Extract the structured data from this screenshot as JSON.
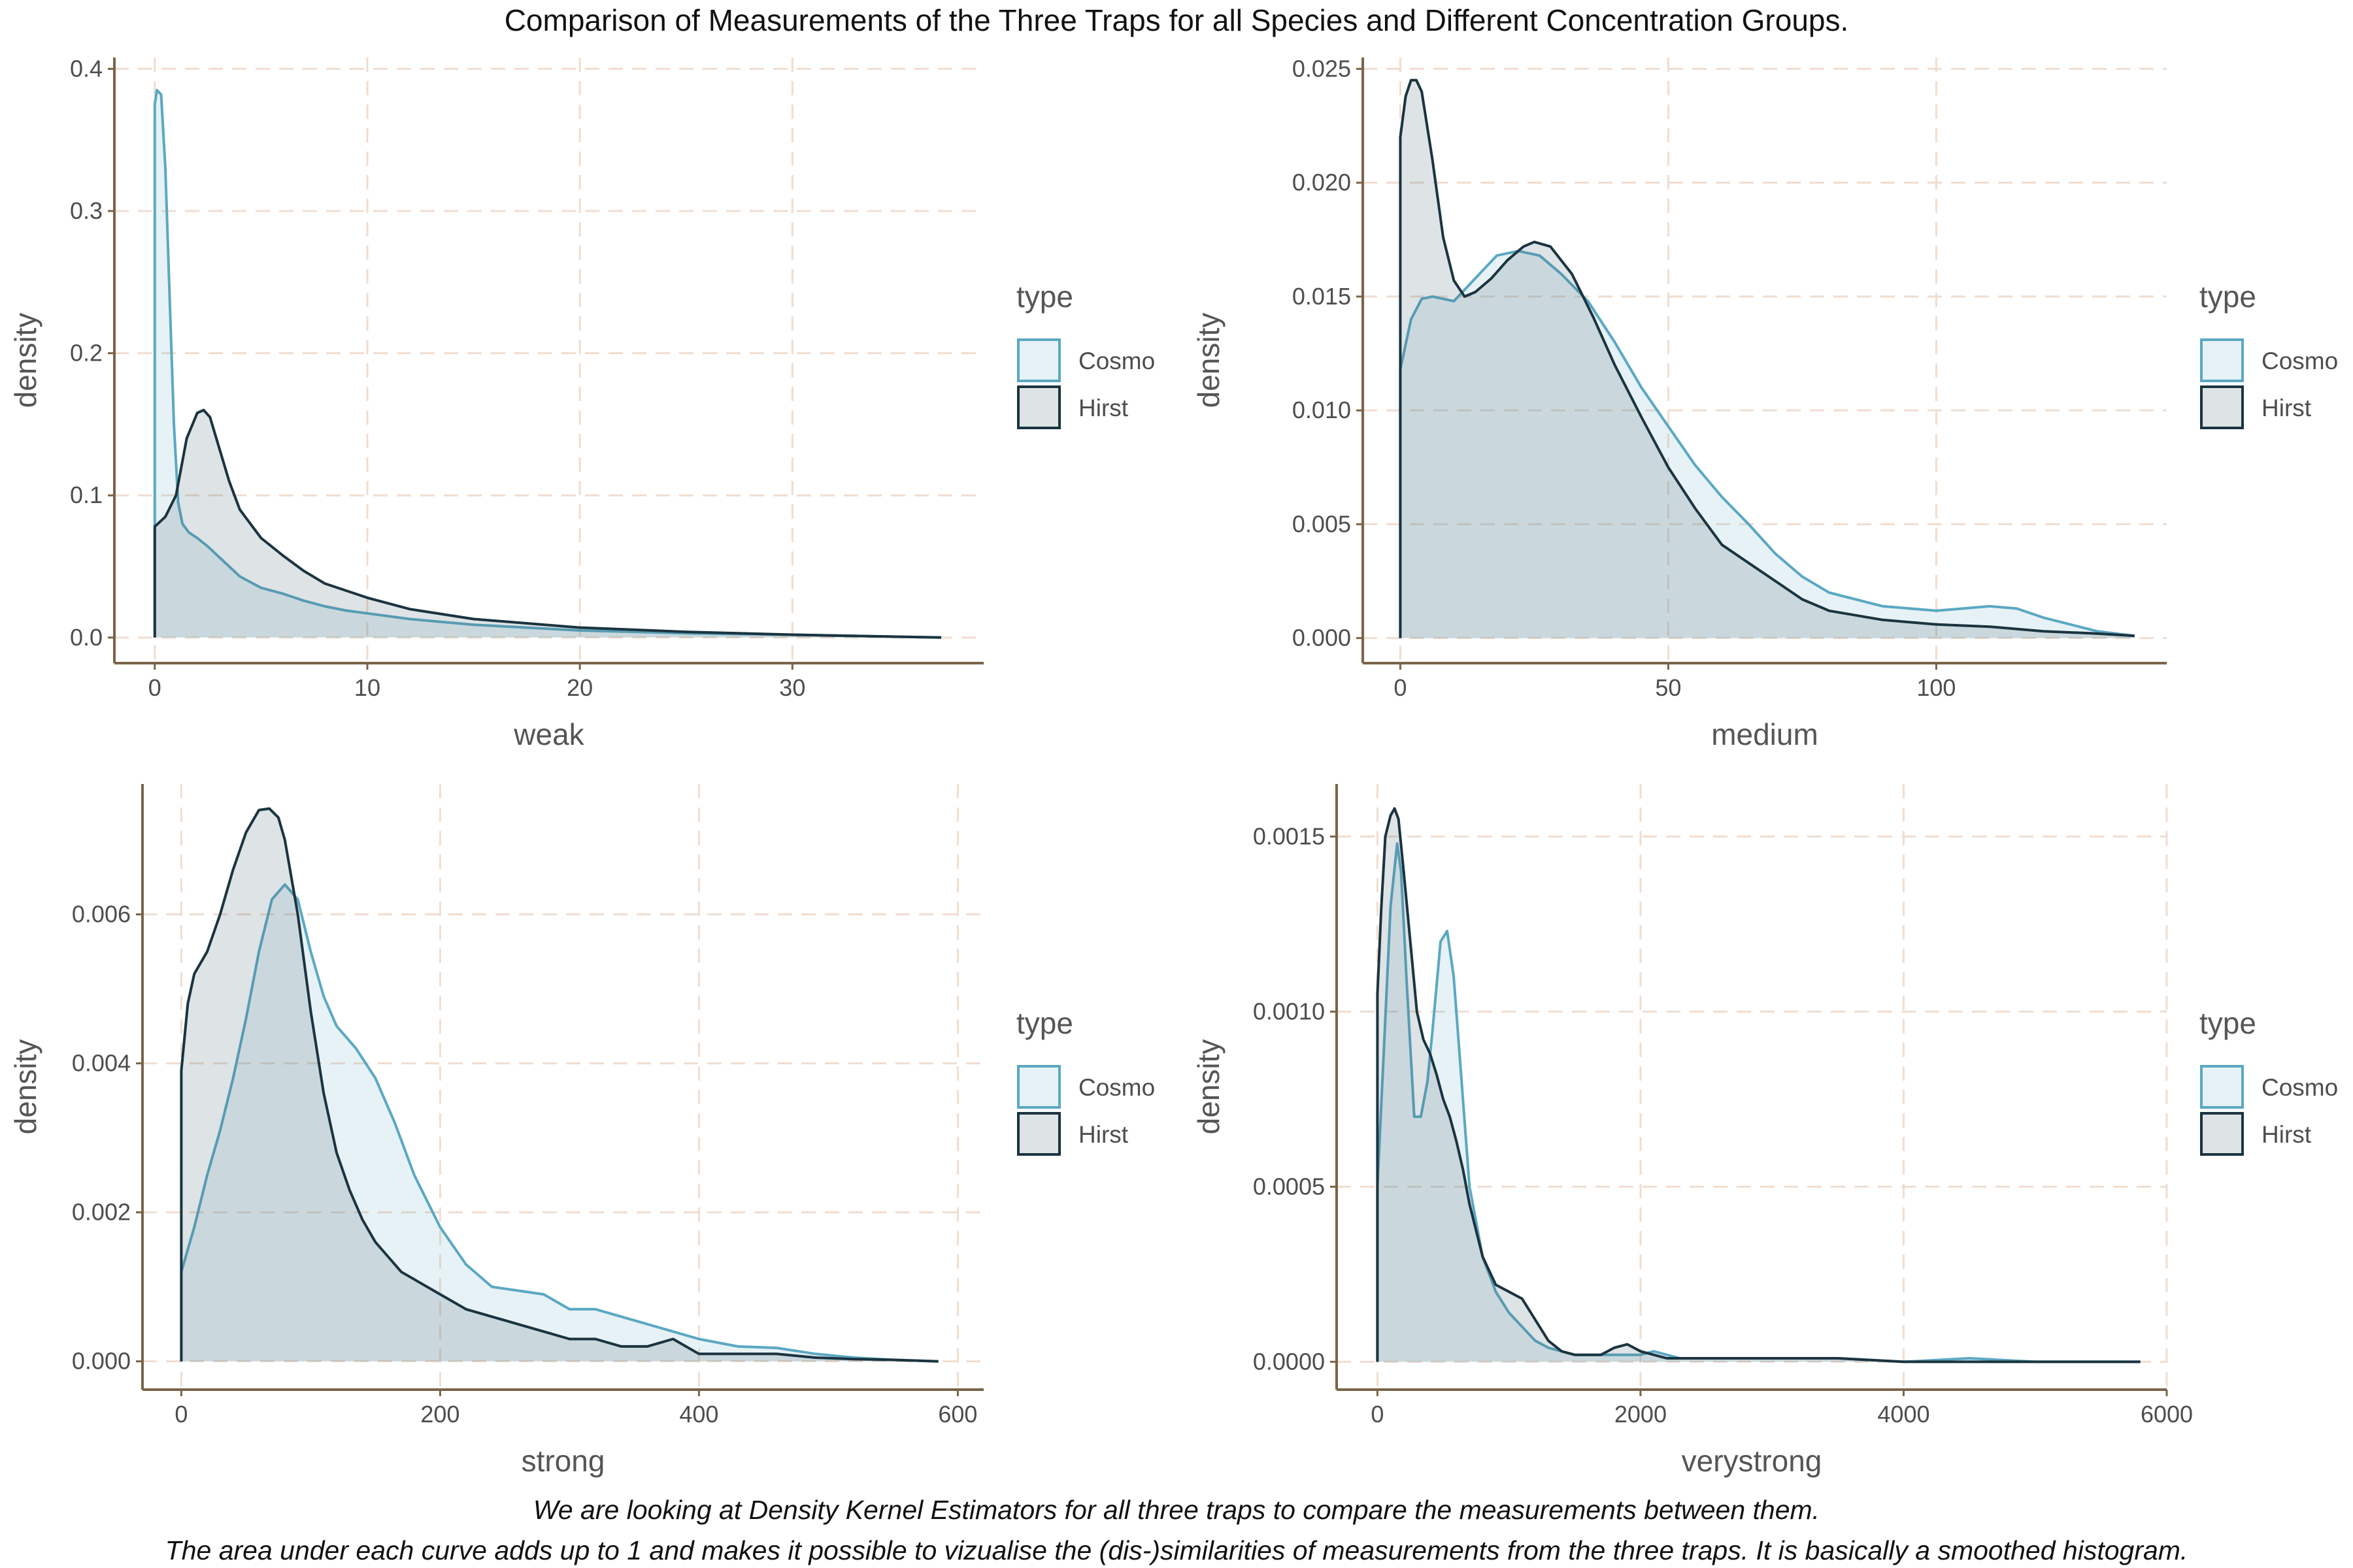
{
  "title": "Comparison of Measurements of the Three Traps for all Species and Different Concentration Groups.",
  "caption_line1": "We are looking at Density Kernel Estimators for all three traps to compare the measurements between them.",
  "caption_line2": "The area under each curve adds up to 1 and makes it possible to vizualise the (dis-)similarities of measurements from the three traps. It is basically a smoothed histogram.",
  "colors": {
    "cosmo_line": "#5ba8c2",
    "cosmo_fill": "#5ba8c2",
    "hirst_line": "#1a3440",
    "hirst_fill": "#4a6470",
    "grid": "#f0ddd0",
    "axis": "#7a6448"
  },
  "chart_data": [
    {
      "type": "area",
      "xlabel": "weak",
      "ylabel": "density",
      "xlim": [
        -1.9,
        39
      ],
      "ylim": [
        -0.018,
        0.408
      ],
      "xticks": [
        0,
        10,
        20,
        30
      ],
      "yticks": [
        0.0,
        0.1,
        0.2,
        0.3,
        0.4
      ],
      "ytick_labels": [
        "0.0",
        "0.1",
        "0.2",
        "0.3",
        "0.4"
      ],
      "legend": {
        "title": "type",
        "entries": [
          "Cosmo",
          "Hirst"
        ]
      },
      "series": [
        {
          "name": "Cosmo",
          "x": [
            0,
            0.1,
            0.3,
            0.5,
            0.7,
            0.9,
            1.1,
            1.3,
            1.6,
            2.0,
            2.5,
            3.0,
            3.5,
            4.0,
            5.0,
            6.0,
            7.0,
            8.0,
            9.0,
            10.0,
            12.0,
            15.0,
            20.0,
            25.0,
            30.0,
            37.0
          ],
          "y": [
            0.375,
            0.385,
            0.382,
            0.33,
            0.24,
            0.15,
            0.095,
            0.08,
            0.074,
            0.07,
            0.064,
            0.057,
            0.05,
            0.043,
            0.035,
            0.031,
            0.026,
            0.022,
            0.019,
            0.017,
            0.013,
            0.009,
            0.005,
            0.003,
            0.002,
            0.0
          ]
        },
        {
          "name": "Hirst",
          "x": [
            0,
            0.5,
            1.0,
            1.5,
            2.0,
            2.3,
            2.6,
            3.0,
            3.5,
            4.0,
            5.0,
            6.0,
            7.0,
            8.0,
            10.0,
            12.0,
            15.0,
            20.0,
            25.0,
            30.0,
            37.0
          ],
          "y": [
            0.078,
            0.085,
            0.1,
            0.14,
            0.158,
            0.16,
            0.155,
            0.135,
            0.11,
            0.09,
            0.07,
            0.058,
            0.047,
            0.038,
            0.028,
            0.02,
            0.013,
            0.007,
            0.004,
            0.002,
            0.0
          ]
        }
      ]
    },
    {
      "type": "area",
      "xlabel": "medium",
      "ylabel": "density",
      "xlim": [
        -7,
        143
      ],
      "ylim": [
        -0.0011,
        0.0255
      ],
      "xticks": [
        0,
        50,
        100
      ],
      "yticks": [
        0.0,
        0.005,
        0.01,
        0.015,
        0.02,
        0.025
      ],
      "ytick_labels": [
        "0.000",
        "0.005",
        "0.010",
        "0.015",
        "0.020",
        "0.025"
      ],
      "legend": {
        "title": "type",
        "entries": [
          "Cosmo",
          "Hirst"
        ]
      },
      "series": [
        {
          "name": "Cosmo",
          "x": [
            0,
            2,
            4,
            6,
            10,
            14,
            18,
            22,
            26,
            30,
            35,
            40,
            45,
            50,
            55,
            60,
            65,
            70,
            75,
            80,
            90,
            100,
            105,
            110,
            115,
            120,
            130,
            137
          ],
          "y": [
            0.0118,
            0.014,
            0.0149,
            0.015,
            0.0148,
            0.0158,
            0.0168,
            0.017,
            0.0168,
            0.016,
            0.0148,
            0.013,
            0.011,
            0.0093,
            0.0076,
            0.0062,
            0.005,
            0.0037,
            0.0027,
            0.002,
            0.0014,
            0.0012,
            0.0013,
            0.0014,
            0.0013,
            0.0009,
            0.0003,
            0.0001
          ]
        },
        {
          "name": "Hirst",
          "x": [
            0,
            1,
            2,
            3,
            4,
            6,
            8,
            10,
            12,
            14,
            17,
            20,
            23,
            25,
            28,
            32,
            36,
            40,
            45,
            50,
            55,
            60,
            65,
            70,
            75,
            80,
            90,
            100,
            110,
            120,
            130,
            137
          ],
          "y": [
            0.022,
            0.0238,
            0.0245,
            0.0245,
            0.024,
            0.021,
            0.0176,
            0.0157,
            0.015,
            0.0152,
            0.0158,
            0.0166,
            0.0172,
            0.0174,
            0.0172,
            0.016,
            0.0141,
            0.012,
            0.0097,
            0.0075,
            0.0057,
            0.0041,
            0.0033,
            0.0025,
            0.0017,
            0.0012,
            0.0008,
            0.0006,
            0.0005,
            0.0003,
            0.0002,
            0.0001
          ]
        }
      ]
    },
    {
      "type": "area",
      "xlabel": "strong",
      "ylabel": "density",
      "xlim": [
        -30,
        620
      ],
      "ylim": [
        -0.00038,
        0.00775
      ],
      "xticks": [
        0,
        200,
        400,
        600
      ],
      "yticks": [
        0.0,
        0.002,
        0.004,
        0.006
      ],
      "ytick_labels": [
        "0.000",
        "0.002",
        "0.004",
        "0.006"
      ],
      "legend": {
        "title": "type",
        "entries": [
          "Cosmo",
          "Hirst"
        ]
      },
      "series": [
        {
          "name": "Cosmo",
          "x": [
            0,
            10,
            20,
            30,
            40,
            50,
            60,
            70,
            80,
            90,
            100,
            110,
            120,
            135,
            150,
            165,
            180,
            200,
            220,
            240,
            260,
            280,
            300,
            320,
            340,
            360,
            380,
            400,
            430,
            460,
            490,
            520,
            550,
            585
          ],
          "y": [
            0.0012,
            0.0018,
            0.0025,
            0.0031,
            0.0038,
            0.0046,
            0.0055,
            0.0062,
            0.0064,
            0.0062,
            0.0055,
            0.0049,
            0.0045,
            0.0042,
            0.0038,
            0.0032,
            0.0025,
            0.0018,
            0.0013,
            0.001,
            0.00095,
            0.0009,
            0.0007,
            0.0007,
            0.0006,
            0.0005,
            0.0004,
            0.0003,
            0.0002,
            0.00018,
            0.0001,
            5e-05,
            2e-05,
            0.0
          ]
        },
        {
          "name": "Hirst",
          "x": [
            0,
            5,
            10,
            20,
            30,
            40,
            50,
            60,
            68,
            75,
            80,
            90,
            100,
            110,
            120,
            130,
            140,
            150,
            160,
            170,
            180,
            200,
            220,
            240,
            260,
            280,
            300,
            320,
            340,
            360,
            380,
            400,
            430,
            460,
            490,
            520,
            550,
            585
          ],
          "y": [
            0.0039,
            0.0048,
            0.0052,
            0.0055,
            0.006,
            0.0066,
            0.0071,
            0.0074,
            0.00742,
            0.0073,
            0.007,
            0.006,
            0.0047,
            0.0036,
            0.0028,
            0.0023,
            0.0019,
            0.0016,
            0.0014,
            0.0012,
            0.0011,
            0.0009,
            0.0007,
            0.0006,
            0.0005,
            0.0004,
            0.0003,
            0.0003,
            0.0002,
            0.0002,
            0.0003,
            0.0001,
            0.0001,
            0.0001,
            5e-05,
            3e-05,
            2e-05,
            0.0
          ]
        }
      ]
    },
    {
      "type": "area",
      "xlabel": "verystrong",
      "ylabel": "density",
      "xlim": [
        -310,
        6000
      ],
      "ylim": [
        -7.95e-05,
        0.00165
      ],
      "xticks": [
        0,
        2000,
        4000,
        6000
      ],
      "yticks": [
        0.0,
        0.0005,
        0.001,
        0.0015
      ],
      "ytick_labels": [
        "0.0000",
        "0.0005",
        "0.0010",
        "0.0015"
      ],
      "legend": {
        "title": "type",
        "entries": [
          "Cosmo",
          "Hirst"
        ]
      },
      "series": [
        {
          "name": "Cosmo",
          "x": [
            0,
            50,
            100,
            150,
            180,
            220,
            280,
            330,
            380,
            420,
            480,
            530,
            580,
            620,
            700,
            800,
            900,
            1000,
            1100,
            1200,
            1300,
            1500,
            1700,
            2000,
            2100,
            2300,
            2600,
            3000,
            3500,
            4000,
            4500,
            5000,
            5800
          ],
          "y": [
            0.0005,
            0.0009,
            0.0013,
            0.00148,
            0.0014,
            0.0011,
            0.0007,
            0.0007,
            0.0008,
            0.00095,
            0.0012,
            0.00123,
            0.0011,
            0.0009,
            0.0005,
            0.0003,
            0.0002,
            0.00014,
            0.0001,
            6e-05,
            4e-05,
            2e-05,
            2e-05,
            2e-05,
            3e-05,
            1e-05,
            1e-05,
            1e-05,
            1e-05,
            0.0,
            1e-05,
            0.0,
            0.0
          ]
        },
        {
          "name": "Hirst",
          "x": [
            0,
            30,
            60,
            100,
            130,
            160,
            200,
            250,
            300,
            350,
            400,
            450,
            500,
            550,
            600,
            650,
            700,
            800,
            900,
            1000,
            1100,
            1200,
            1300,
            1400,
            1500,
            1600,
            1700,
            1800,
            1900,
            2000,
            2200,
            2500,
            3000,
            3500,
            4000,
            5000,
            5800
          ],
          "y": [
            0.00105,
            0.0013,
            0.0015,
            0.00156,
            0.00158,
            0.00155,
            0.0014,
            0.0012,
            0.001,
            0.00092,
            0.00088,
            0.00082,
            0.00075,
            0.0007,
            0.00063,
            0.00055,
            0.00045,
            0.0003,
            0.00022,
            0.0002,
            0.00018,
            0.00012,
            6e-05,
            3e-05,
            2e-05,
            2e-05,
            2e-05,
            4e-05,
            5e-05,
            3e-05,
            1e-05,
            1e-05,
            1e-05,
            1e-05,
            0.0,
            0.0,
            0.0
          ]
        }
      ]
    }
  ]
}
